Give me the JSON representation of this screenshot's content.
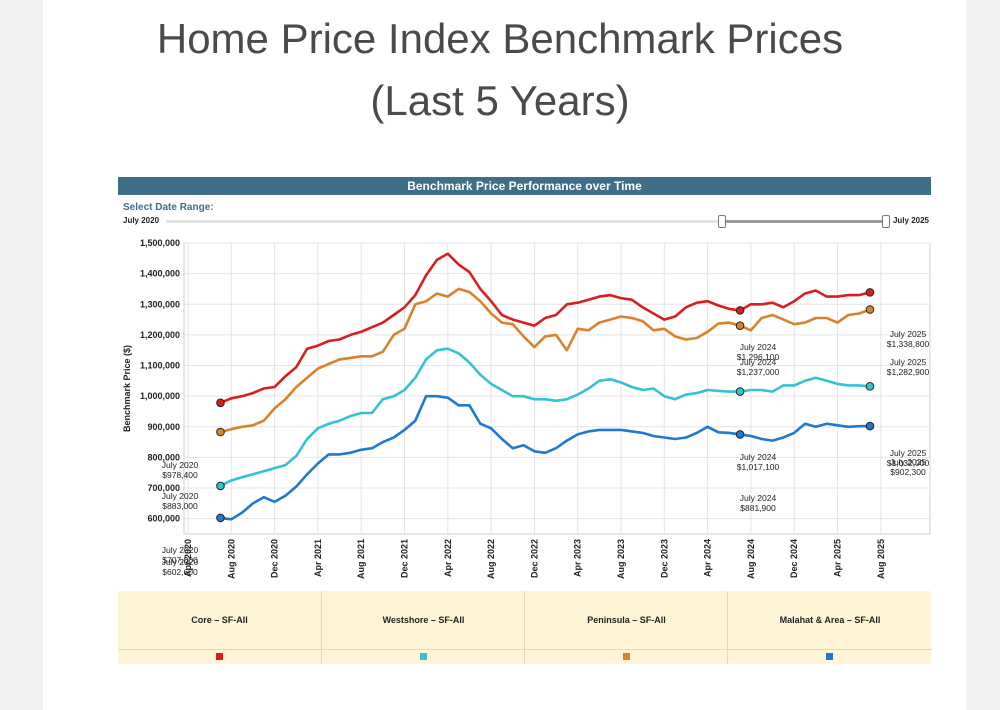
{
  "page": {
    "title_line1": "Home Price Index Benchmark Prices",
    "title_line2": "(Last 5 Years)"
  },
  "widget": {
    "header": "Benchmark Price Performance over Time",
    "range_label": "Select Date Range:",
    "range_start": "July 2020",
    "range_end": "July 2025"
  },
  "colors": {
    "core": "#d81e1e",
    "westshore": "#33c2d1",
    "peninsula": "#d9822b",
    "malahat": "#1f78d1"
  },
  "legend": [
    {
      "name": "Core – SF-All",
      "color": "#d81e1e"
    },
    {
      "name": "Westshore – SF-All",
      "color": "#33c2d1"
    },
    {
      "name": "Peninsula – SF-All",
      "color": "#d9822b"
    },
    {
      "name": "Malahat & Area – SF-All",
      "color": "#1f78d1"
    }
  ],
  "chart_data": {
    "type": "line",
    "title": "Benchmark Price Performance over Time",
    "ylabel": "Benchmark Price ($)",
    "xlabel": "",
    "ylim": [
      550000,
      1500000
    ],
    "y_ticks": [
      "1,500,000",
      "1,400,000",
      "1,300,000",
      "1,200,000",
      "1,100,000",
      "1,000,000",
      "900,000",
      "800,000",
      "700,000",
      "600,000"
    ],
    "x_ticks": [
      "Apr 2020",
      "Aug 2020",
      "Dec 2020",
      "Apr 2021",
      "Aug 2021",
      "Dec 2021",
      "Apr 2022",
      "Aug 2022",
      "Dec 2022",
      "Apr 2023",
      "Aug 2023",
      "Dec 2023",
      "Apr 2024",
      "Aug 2024",
      "Dec 2024",
      "Apr 2025",
      "Aug 2025"
    ],
    "grid": true,
    "x_start": "2020-07",
    "x_end": "2025-07",
    "series": [
      {
        "name": "Core – SF-All",
        "color": "#d81e1e",
        "values": [
          978400,
          993000,
          1000000,
          1010000,
          1025000,
          1030000,
          1065000,
          1095000,
          1155000,
          1165000,
          1180000,
          1185000,
          1200000,
          1210000,
          1225000,
          1240000,
          1265000,
          1290000,
          1330000,
          1395000,
          1445000,
          1465000,
          1430000,
          1405000,
          1350000,
          1310000,
          1265000,
          1250000,
          1240000,
          1230000,
          1255000,
          1265000,
          1300000,
          1305000,
          1315000,
          1325000,
          1330000,
          1320000,
          1315000,
          1290000,
          1270000,
          1250000,
          1260000,
          1290000,
          1305000,
          1310000,
          1296100,
          1285000,
          1280000,
          1300000,
          1300000,
          1305000,
          1290000,
          1310000,
          1335000,
          1345000,
          1325000,
          1325000,
          1330000,
          1330000,
          1338800
        ]
      },
      {
        "name": "Westshore – SF-All",
        "color": "#33c2d1",
        "values": [
          707000,
          725000,
          735000,
          745000,
          755000,
          765000,
          775000,
          805000,
          860000,
          895000,
          910000,
          920000,
          935000,
          945000,
          945000,
          990000,
          1000000,
          1020000,
          1060000,
          1120000,
          1150000,
          1155000,
          1140000,
          1110000,
          1070000,
          1040000,
          1020000,
          1000000,
          1000000,
          990000,
          990000,
          985000,
          990000,
          1005000,
          1025000,
          1050000,
          1055000,
          1045000,
          1030000,
          1020000,
          1025000,
          1000000,
          990000,
          1005000,
          1010000,
          1020000,
          1017100,
          1015000,
          1015000,
          1020000,
          1020000,
          1015000,
          1035000,
          1035000,
          1050000,
          1060000,
          1050000,
          1040000,
          1035000,
          1035000,
          1032000
        ]
      },
      {
        "name": "Peninsula – SF-All",
        "color": "#d9822b",
        "values": [
          883000,
          892000,
          900000,
          905000,
          920000,
          960000,
          990000,
          1030000,
          1060000,
          1090000,
          1105000,
          1120000,
          1125000,
          1130000,
          1130000,
          1145000,
          1200000,
          1220000,
          1300000,
          1310000,
          1335000,
          1325000,
          1350000,
          1340000,
          1310000,
          1270000,
          1240000,
          1235000,
          1195000,
          1160000,
          1195000,
          1200000,
          1150000,
          1220000,
          1215000,
          1240000,
          1250000,
          1260000,
          1255000,
          1245000,
          1215000,
          1220000,
          1195000,
          1185000,
          1190000,
          1210000,
          1237000,
          1240000,
          1230000,
          1215000,
          1255000,
          1265000,
          1250000,
          1235000,
          1240000,
          1255000,
          1255000,
          1240000,
          1265000,
          1270000,
          1282900
        ]
      },
      {
        "name": "Malahat & Area – SF-All",
        "color": "#1f78d1",
        "values": [
          602600,
          598000,
          620000,
          650000,
          670000,
          655000,
          675000,
          705000,
          745000,
          780000,
          810000,
          810000,
          815000,
          825000,
          830000,
          850000,
          865000,
          890000,
          920000,
          1000000,
          1000000,
          995000,
          970000,
          970000,
          910000,
          895000,
          860000,
          830000,
          840000,
          820000,
          815000,
          830000,
          855000,
          875000,
          885000,
          890000,
          890000,
          890000,
          885000,
          880000,
          870000,
          865000,
          860000,
          865000,
          880000,
          900000,
          881900,
          880000,
          875000,
          870000,
          860000,
          855000,
          865000,
          880000,
          910000,
          900000,
          910000,
          905000,
          900000,
          902000,
          902300
        ]
      }
    ],
    "annotations": [
      {
        "text": "July 2020",
        "value": "$978,400"
      },
      {
        "text": "July 2020",
        "value": "$883,000"
      },
      {
        "text": "July 2020",
        "value": "$707,000"
      },
      {
        "text": "July 2020",
        "value": "$602,600"
      },
      {
        "text": "July 2024",
        "value": "$1,296,100"
      },
      {
        "text": "July 2024",
        "value": "$1,237,000"
      },
      {
        "text": "July 2024",
        "value": "$1,017,100"
      },
      {
        "text": "July 2024",
        "value": "$881,900"
      },
      {
        "text": "July 2025",
        "value": "$1,338,800"
      },
      {
        "text": "July 2025",
        "value": "$1,282,900"
      },
      {
        "text": "July 2025",
        "value": "$1,032,000"
      },
      {
        "text": "July 2025",
        "value": "$902,300"
      }
    ]
  }
}
